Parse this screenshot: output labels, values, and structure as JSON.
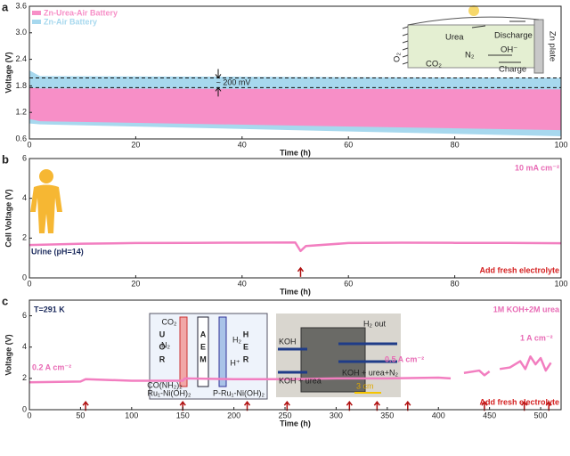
{
  "chart_data": [
    {
      "type": "area",
      "label": "a",
      "xlabel": "Time (h)",
      "ylabel": "Voltage (V)",
      "xlim": [
        0,
        100
      ],
      "ylim": [
        0.6,
        3.6
      ],
      "xticks": [
        0,
        20,
        40,
        60,
        80,
        100
      ],
      "yticks": [
        0.6,
        1.2,
        1.8,
        2.4,
        {
          "value": 3,
          "label": "3.0"
        },
        3.6
      ],
      "x": [
        0,
        2,
        100
      ],
      "series": [
        {
          "name": "Zn-Urea-Air Battery",
          "color": "#f78fc7",
          "upper": [
            1.76,
            1.74,
            1.72
          ],
          "lower": [
            1.05,
            1.0,
            0.8
          ]
        },
        {
          "name": "Zn-Air Battery",
          "color": "#a7d8ee",
          "upper": [
            2.15,
            2.02,
            1.98
          ],
          "lower": [
            0.95,
            0.93,
            0.66
          ]
        }
      ],
      "reference_lines": [
        1.98,
        1.76
      ],
      "annotation": "~ 200 mV",
      "inset": {
        "urea": "Urea",
        "discharge": "Discharge",
        "co2": "CO₂",
        "n2": "N₂",
        "oh": "OH⁻",
        "charge": "Charge",
        "o2": "O₂",
        "zn": "Zn plate"
      }
    },
    {
      "type": "line",
      "label": "b",
      "xlabel": "Time (h)",
      "ylabel": "Cell Voltage (V)",
      "xlim": [
        0,
        100
      ],
      "ylim": [
        0,
        6
      ],
      "xticks": [
        0,
        20,
        40,
        60,
        80,
        100
      ],
      "yticks": [
        0,
        2,
        4,
        6
      ],
      "x": [
        0,
        10,
        20,
        30,
        40,
        50,
        51,
        52,
        60,
        70,
        80,
        90,
        100
      ],
      "series": [
        {
          "color": "#f27ec0",
          "values": [
            1.65,
            1.72,
            1.75,
            1.76,
            1.77,
            1.78,
            1.35,
            1.6,
            1.75,
            1.77,
            1.76,
            1.76,
            1.74
          ]
        }
      ],
      "current_density": "10 mA cm⁻²",
      "electrolyte": "Urine (pH=14)",
      "note": "Add fresh electrolyte",
      "arrow_x": [
        51
      ]
    },
    {
      "type": "line",
      "label": "c",
      "xlabel": "Time (h)",
      "ylabel": "Voltage (V)",
      "xlim": [
        0,
        520
      ],
      "ylim": [
        0,
        7
      ],
      "xticks": [
        0,
        50,
        100,
        150,
        200,
        250,
        300,
        350,
        400,
        450,
        500
      ],
      "yticks": [
        0,
        2,
        4,
        6
      ],
      "x": [
        0,
        50,
        55,
        100,
        150,
        152,
        200,
        250,
        300,
        350,
        400,
        412,
        415,
        425,
        440,
        445,
        450,
        455,
        460,
        470,
        480,
        485,
        490,
        495,
        500,
        505,
        510
      ],
      "series": [
        {
          "color": "#f27ec0",
          "values": [
            1.75,
            1.8,
            1.95,
            1.85,
            1.85,
            2.0,
            1.95,
            1.95,
            2.0,
            2.0,
            2.05,
            2.0,
            null,
            2.35,
            2.5,
            2.2,
            2.45,
            null,
            2.6,
            2.7,
            3.1,
            2.6,
            3.4,
            2.9,
            3.3,
            2.5,
            3.0
          ]
        }
      ],
      "temperature": "T=291 K",
      "electrolyte": "1M KOH+2M urea",
      "note": "Add fresh electrolyte",
      "current_labels": [
        "0.2 A cm⁻²",
        "0.5 A cm⁻²",
        "1 A cm⁻²"
      ],
      "arrow_x": [
        55,
        150,
        213,
        252,
        313,
        340,
        370,
        445,
        484,
        508
      ],
      "scheme": {
        "left": [
          "U",
          "O",
          "R"
        ],
        "middle": [
          "A",
          "E",
          "M"
        ],
        "right": [
          "H",
          "E",
          "R"
        ],
        "co2": "CO₂",
        "n2": "N₂",
        "urea": "CO(NH₂)₂",
        "h2": "H₂",
        "hplus": "H⁺",
        "anode": "Ru₁-Ni(OH)₂",
        "cathode": "P-Ru₁-Ni(OH)₂"
      },
      "photo": {
        "h2out": "H₂ out",
        "koh": "KOH",
        "out": "KOH + urea+N₂",
        "in": "KOH + urea",
        "scale": "3 cm"
      }
    }
  ]
}
